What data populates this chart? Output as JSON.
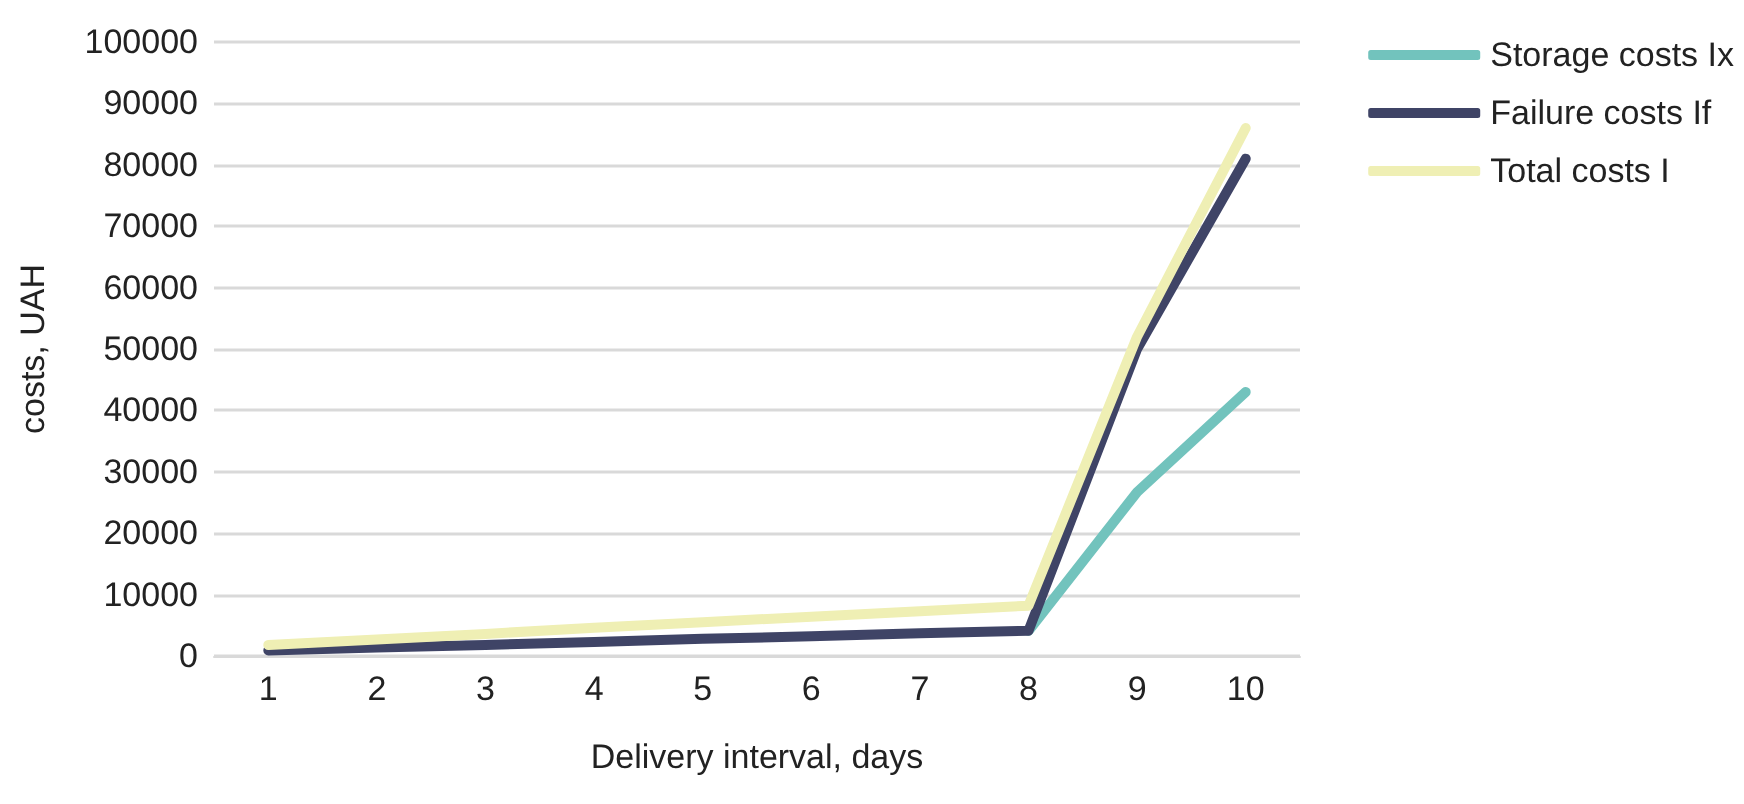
{
  "chart_data": {
    "type": "line",
    "xlabel": "Delivery interval, days",
    "ylabel": "costs, UAH",
    "categories": [
      "1",
      "2",
      "3",
      "4",
      "5",
      "6",
      "7",
      "8",
      "9",
      "10"
    ],
    "series": [
      {
        "name": "Storage costs Ix",
        "color": "#72c3bd",
        "values": [
          null,
          null,
          null,
          null,
          null,
          null,
          null,
          4100,
          26700,
          43000
        ]
      },
      {
        "name": "Failure costs If",
        "color": "#3f4466",
        "values": [
          900,
          1400,
          1800,
          2300,
          2800,
          3200,
          3700,
          4100,
          50000,
          81000
        ]
      },
      {
        "name": "Total costs I",
        "color": "#efefb4",
        "values": [
          1800,
          2700,
          3600,
          4600,
          5500,
          6400,
          7300,
          8200,
          52000,
          86000
        ]
      }
    ],
    "ylim": [
      0,
      100000
    ],
    "yticks": [
      0,
      10000,
      20000,
      30000,
      40000,
      50000,
      60000,
      70000,
      80000,
      90000,
      100000
    ],
    "grid": "y",
    "legend": "right",
    "marker": "none",
    "line_style": "solid"
  }
}
